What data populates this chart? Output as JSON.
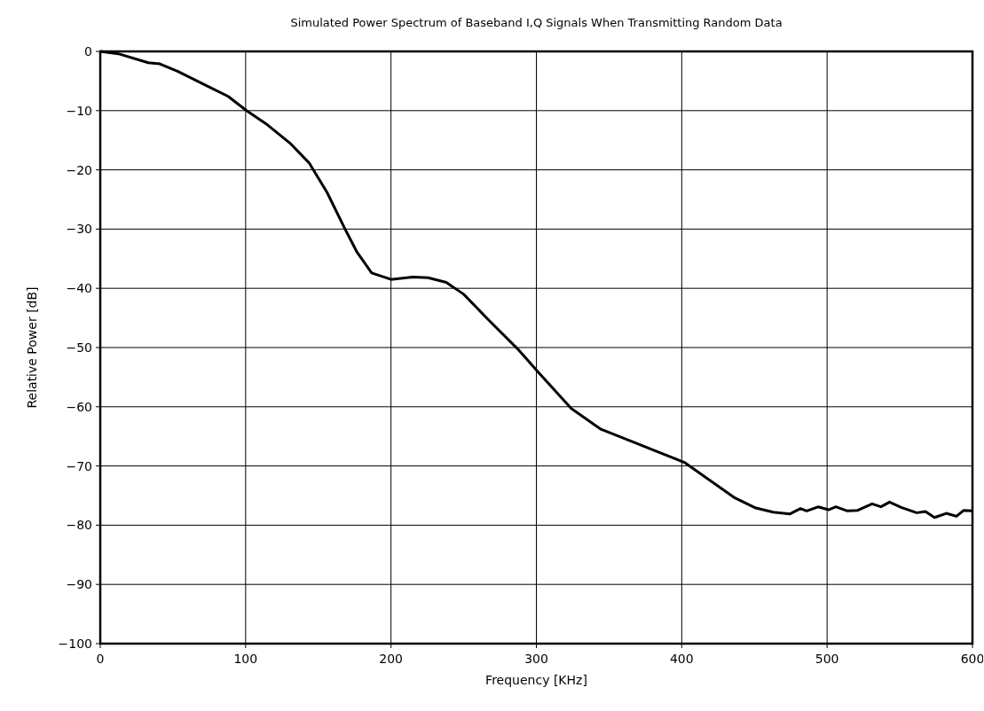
{
  "chart_data": {
    "type": "line",
    "title": "Simulated Power Spectrum of Baseband I,Q Signals When Transmitting Random Data",
    "xlabel": "Frequency [KHz]",
    "ylabel": "Relative Power [dB]",
    "xlim": [
      0,
      600
    ],
    "xticks": [
      0,
      100,
      200,
      300,
      400,
      500,
      600
    ],
    "ylim": [
      -100,
      0
    ],
    "yticks": [
      -100,
      -90,
      -80,
      -70,
      -60,
      -50,
      -40,
      -30,
      -20,
      -10,
      0
    ],
    "grid": true,
    "marker": "none",
    "line_style": "solid",
    "series": [
      {
        "color": "#000000",
        "x": [
          0,
          12.5,
          33,
          41,
          53.5,
          74,
          88,
          100.6,
          115,
          131,
          143.6,
          156,
          168,
          176.4,
          186.7,
          200,
          215,
          225.5,
          238,
          250,
          266.6,
          287,
          301.4,
          324,
          344.4,
          369,
          401.8,
          418,
          436.6,
          451,
          463,
          474.5,
          481.7,
          486,
          494,
          501,
          506,
          514,
          521,
          531,
          537,
          543,
          551,
          561.6,
          567.7,
          573.9,
          582,
          589,
          594,
          600
        ],
        "values": [
          0,
          -0.4,
          -1.9,
          -2.1,
          -3.4,
          -5.9,
          -7.6,
          -10,
          -12.4,
          -15.6,
          -18.8,
          -23.8,
          -29.8,
          -33.8,
          -37.4,
          -38.5,
          -38.1,
          -38.2,
          -39,
          -41,
          -45.2,
          -50.2,
          -54.2,
          -60.3,
          -63.8,
          -66.2,
          -69.4,
          -72.2,
          -75.4,
          -77.1,
          -77.8,
          -78.1,
          -77.2,
          -77.6,
          -76.9,
          -77.4,
          -76.9,
          -77.6,
          -77.5,
          -76.4,
          -76.9,
          -76.1,
          -77,
          -77.9,
          -77.7,
          -78.7,
          -78,
          -78.5,
          -77.5,
          -77.6
        ]
      }
    ]
  }
}
